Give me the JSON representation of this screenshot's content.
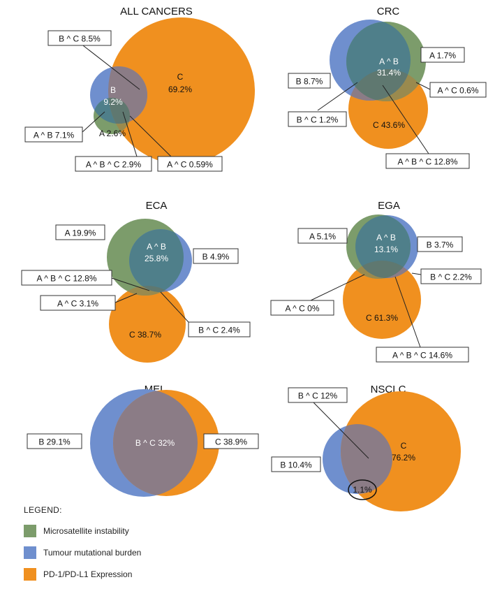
{
  "colors": {
    "msi": "#7c9c6b",
    "tmb": "#6f8fce",
    "pdl1": "#f0901f",
    "ab": "#4f7f8a",
    "ac": "#9a8a4e",
    "bc": "#8b7c86",
    "abc": "#5f7870"
  },
  "panels": [
    {
      "title": "ALL CANCERS",
      "inline": [
        {
          "text": "B",
          "color": "#ffffff"
        },
        {
          "text": "9.2%",
          "color": "#ffffff"
        },
        {
          "text": "A 2.6%",
          "color": "#111111"
        },
        {
          "text": "C",
          "color": "#111111"
        },
        {
          "text": "69.2%",
          "color": "#111111"
        }
      ],
      "callouts": [
        "B ^ C 8.5%",
        "A ^ B 7.1%",
        "A ^ B ^ C 2.9%",
        "A ^ C 0.59%"
      ]
    },
    {
      "title": "CRC",
      "inline": [
        {
          "text": "A ^ B",
          "color": "#ffffff"
        },
        {
          "text": "31.4%",
          "color": "#ffffff"
        },
        {
          "text": "C 43.6%",
          "color": "#111111"
        }
      ],
      "callouts": [
        "A 1.7%",
        "B 8.7%",
        "A ^ C 0.6%",
        "B ^ C 1.2%",
        "A ^ B ^ C 12.8%"
      ]
    },
    {
      "title": "ECA",
      "inline": [
        {
          "text": "A ^ B",
          "color": "#ffffff"
        },
        {
          "text": "25.8%",
          "color": "#ffffff"
        },
        {
          "text": "C 38.7%",
          "color": "#111111"
        }
      ],
      "callouts": [
        "A 19.9%",
        "B 4.9%",
        "A ^ B ^ C 12.8%",
        "A ^ C 3.1%",
        "B ^ C 2.4%"
      ]
    },
    {
      "title": "EGA",
      "inline": [
        {
          "text": "A ^ B",
          "color": "#ffffff"
        },
        {
          "text": "13.1%",
          "color": "#ffffff"
        },
        {
          "text": "C 61.3%",
          "color": "#111111"
        }
      ],
      "callouts": [
        "A 5.1%",
        "B 3.7%",
        "B ^ C 2.2%",
        "A ^ C 0%",
        "A ^ B ^ C 14.6%"
      ]
    },
    {
      "title": "MEL",
      "inline": [
        {
          "text": "B ^ C 32%",
          "color": "#ffffff"
        }
      ],
      "callouts": [
        "B 29.1%",
        "C 38.9%"
      ]
    },
    {
      "title": "NSCLC",
      "inline": [
        {
          "text": "C",
          "color": "#111111"
        },
        {
          "text": "76.2%",
          "color": "#111111"
        },
        {
          "text": "1.1%",
          "color": "#111111"
        }
      ],
      "callouts": [
        "B ^ C 12%",
        "B 10.4%"
      ]
    }
  ],
  "legend": {
    "title": "LEGEND:",
    "items": [
      {
        "label": "Microsatellite instability",
        "color": "#7c9c6b"
      },
      {
        "label": "Tumour mutational burden",
        "color": "#6f8fce"
      },
      {
        "label": "PD-1/PD-L1 Expression",
        "color": "#f0901f"
      }
    ]
  }
}
